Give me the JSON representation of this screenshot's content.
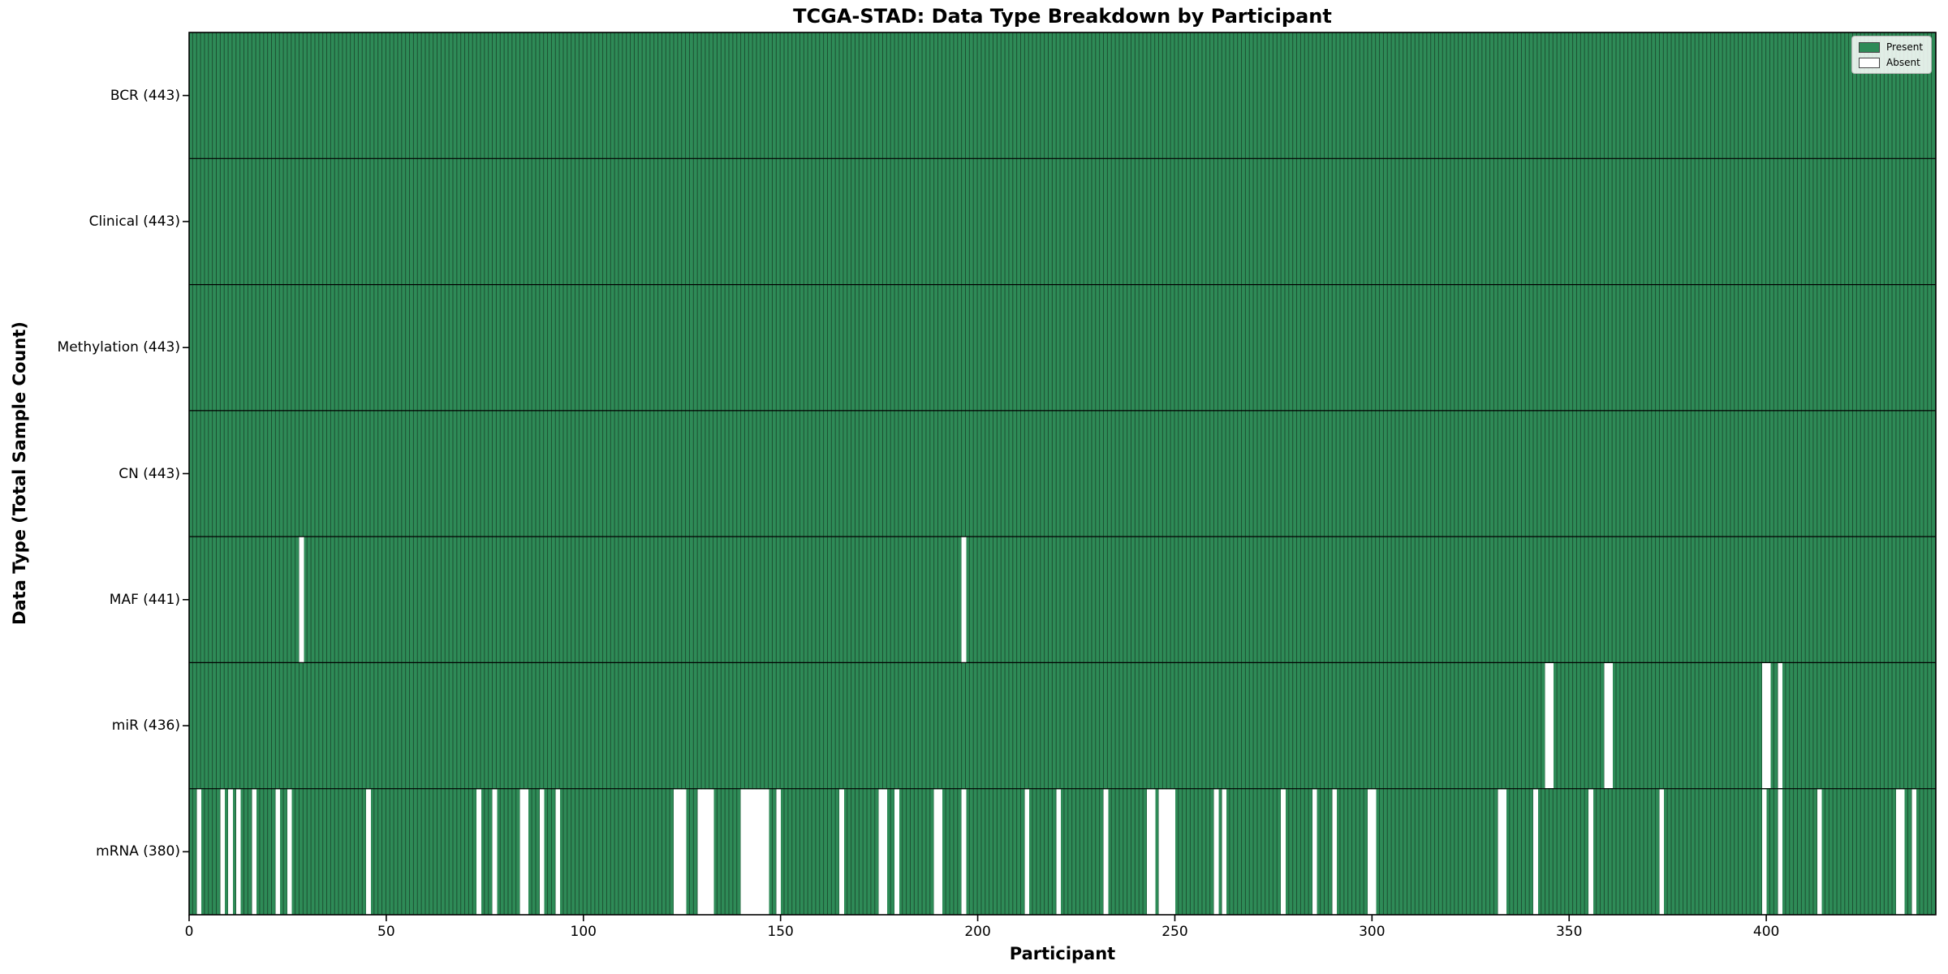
{
  "title": "TCGA-STAD: Data Type Breakdown by Participant",
  "x_axis": {
    "label": "Participant",
    "ticks": [
      0,
      50,
      100,
      150,
      200,
      250,
      300,
      350,
      400
    ]
  },
  "y_axis": {
    "label": "Data Type (Total Sample Count)"
  },
  "legend": [
    {
      "label": "Present",
      "color": "#2e8b57"
    },
    {
      "label": "Absent",
      "color": "#ffffff"
    }
  ],
  "chart_data": {
    "type": "heatmap",
    "title": "TCGA-STAD: Data Type Breakdown by Participant",
    "xlabel": "Participant",
    "ylabel": "Data Type (Total Sample Count)",
    "n_participants": 443,
    "x_ticks": [
      0,
      50,
      100,
      150,
      200,
      250,
      300,
      350,
      400
    ],
    "legend_position": "upper right",
    "colors": {
      "present": "#2e8b57",
      "absent": "#ffffff",
      "bar_edge": "#1c4f31",
      "grid_line": "#000000"
    },
    "rows": [
      {
        "name": "BCR",
        "label": "BCR (443)",
        "total": 443,
        "missing": []
      },
      {
        "name": "Clinical",
        "label": "Clinical (443)",
        "total": 443,
        "missing": []
      },
      {
        "name": "Methylation",
        "label": "Methylation (443)",
        "total": 443,
        "missing": []
      },
      {
        "name": "CN",
        "label": "CN (443)",
        "total": 443,
        "missing": []
      },
      {
        "name": "MAF",
        "label": "MAF (441)",
        "total": 441,
        "missing": [
          28,
          196
        ]
      },
      {
        "name": "miR",
        "label": "miR (436)",
        "total": 436,
        "missing": [
          344,
          345,
          359,
          360,
          399,
          400,
          403
        ]
      },
      {
        "name": "mRNA",
        "label": "mRNA (380)",
        "total": 380,
        "missing": [
          2,
          8,
          10,
          12,
          16,
          22,
          25,
          45,
          73,
          77,
          84,
          85,
          89,
          93,
          123,
          124,
          125,
          129,
          130,
          131,
          132,
          140,
          141,
          142,
          143,
          144,
          145,
          146,
          149,
          165,
          175,
          176,
          179,
          189,
          190,
          196,
          212,
          220,
          232,
          243,
          244,
          246,
          247,
          248,
          249,
          260,
          262,
          277,
          285,
          290,
          299,
          300,
          332,
          333,
          341,
          355,
          373,
          399,
          403,
          413,
          433,
          434,
          437
        ]
      }
    ]
  }
}
